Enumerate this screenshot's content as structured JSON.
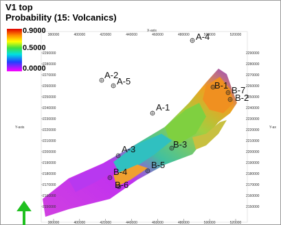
{
  "title": "V1 top",
  "subtitle": "Probability (15: Volcanics)",
  "legend": {
    "labels": [
      "0.9000",
      "0.5000",
      "0.0000"
    ]
  },
  "axes": {
    "x_label": "X-axis",
    "y_label": "Y-axis",
    "y2_label": "Y-ax",
    "xticks": [
      380000,
      400000,
      420000,
      440000,
      460000,
      480000,
      500000,
      520000
    ],
    "yticks": [
      2290000,
      2280000,
      2270000,
      2260000,
      2250000,
      2240000,
      2230000,
      2220000,
      2210000,
      2200000,
      2190000,
      2180000,
      2170000,
      2160000,
      2150000
    ]
  },
  "wells": [
    "A-4",
    "A-2",
    "A-5",
    "A-1",
    "A-3",
    "B-4",
    "B-6",
    "B-5",
    "B-3",
    "B-1",
    "B-7",
    "B-2"
  ]
}
